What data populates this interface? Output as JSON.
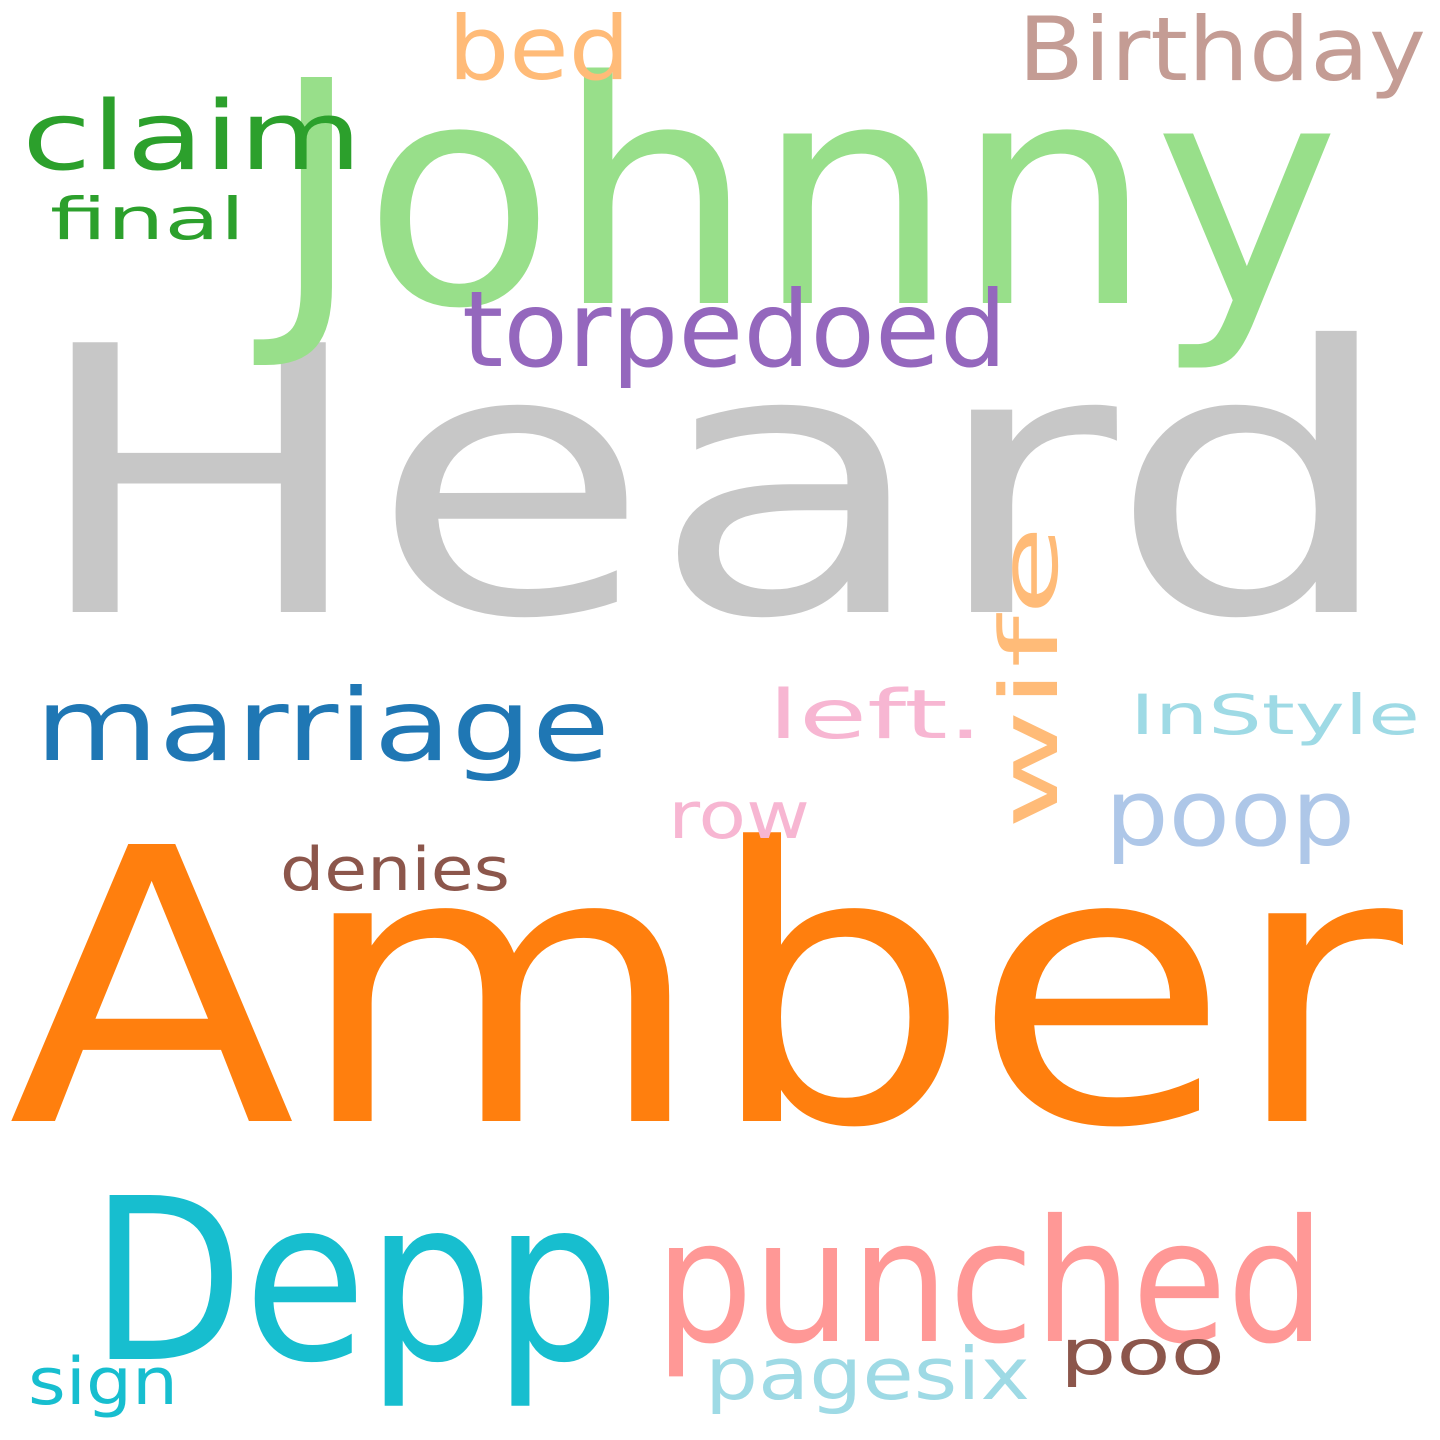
{
  "cloud": {
    "background": "#ffffff",
    "words": [
      {
        "key": "heard",
        "text": "Heard",
        "color": "#c7c7c7"
      },
      {
        "key": "amber",
        "text": "Amber",
        "color": "#ff7f0e"
      },
      {
        "key": "johnny",
        "text": "Johnny",
        "color": "#98df8a"
      },
      {
        "key": "depp",
        "text": "Depp",
        "color": "#17becf"
      },
      {
        "key": "punched",
        "text": "punched",
        "color": "#ff9896"
      },
      {
        "key": "marriage",
        "text": "marriage",
        "color": "#1f77b4"
      },
      {
        "key": "torpedoed",
        "text": "torpedoed",
        "color": "#9467bd"
      },
      {
        "key": "claim",
        "text": "claim",
        "color": "#2ca02c"
      },
      {
        "key": "wife",
        "text": "wife",
        "color": "#ffbb78"
      },
      {
        "key": "poop",
        "text": "poop",
        "color": "#aec7e8"
      },
      {
        "key": "bed",
        "text": "bed",
        "color": "#ffbb78"
      },
      {
        "key": "birthday",
        "text": "Birthday",
        "color": "#c49c94"
      },
      {
        "key": "pagesix",
        "text": "pagesix",
        "color": "#9edae5"
      },
      {
        "key": "poo",
        "text": "poo",
        "color": "#8c564b"
      },
      {
        "key": "instyle",
        "text": "InStyle",
        "color": "#9edae5"
      },
      {
        "key": "left",
        "text": "left.",
        "color": "#f7b6d2"
      },
      {
        "key": "row",
        "text": "row",
        "color": "#f7b6d2"
      },
      {
        "key": "denies",
        "text": "denies",
        "color": "#8c564b"
      },
      {
        "key": "final",
        "text": "final",
        "color": "#2ca02c"
      },
      {
        "key": "sign",
        "text": "sign",
        "color": "#17becf"
      }
    ]
  }
}
